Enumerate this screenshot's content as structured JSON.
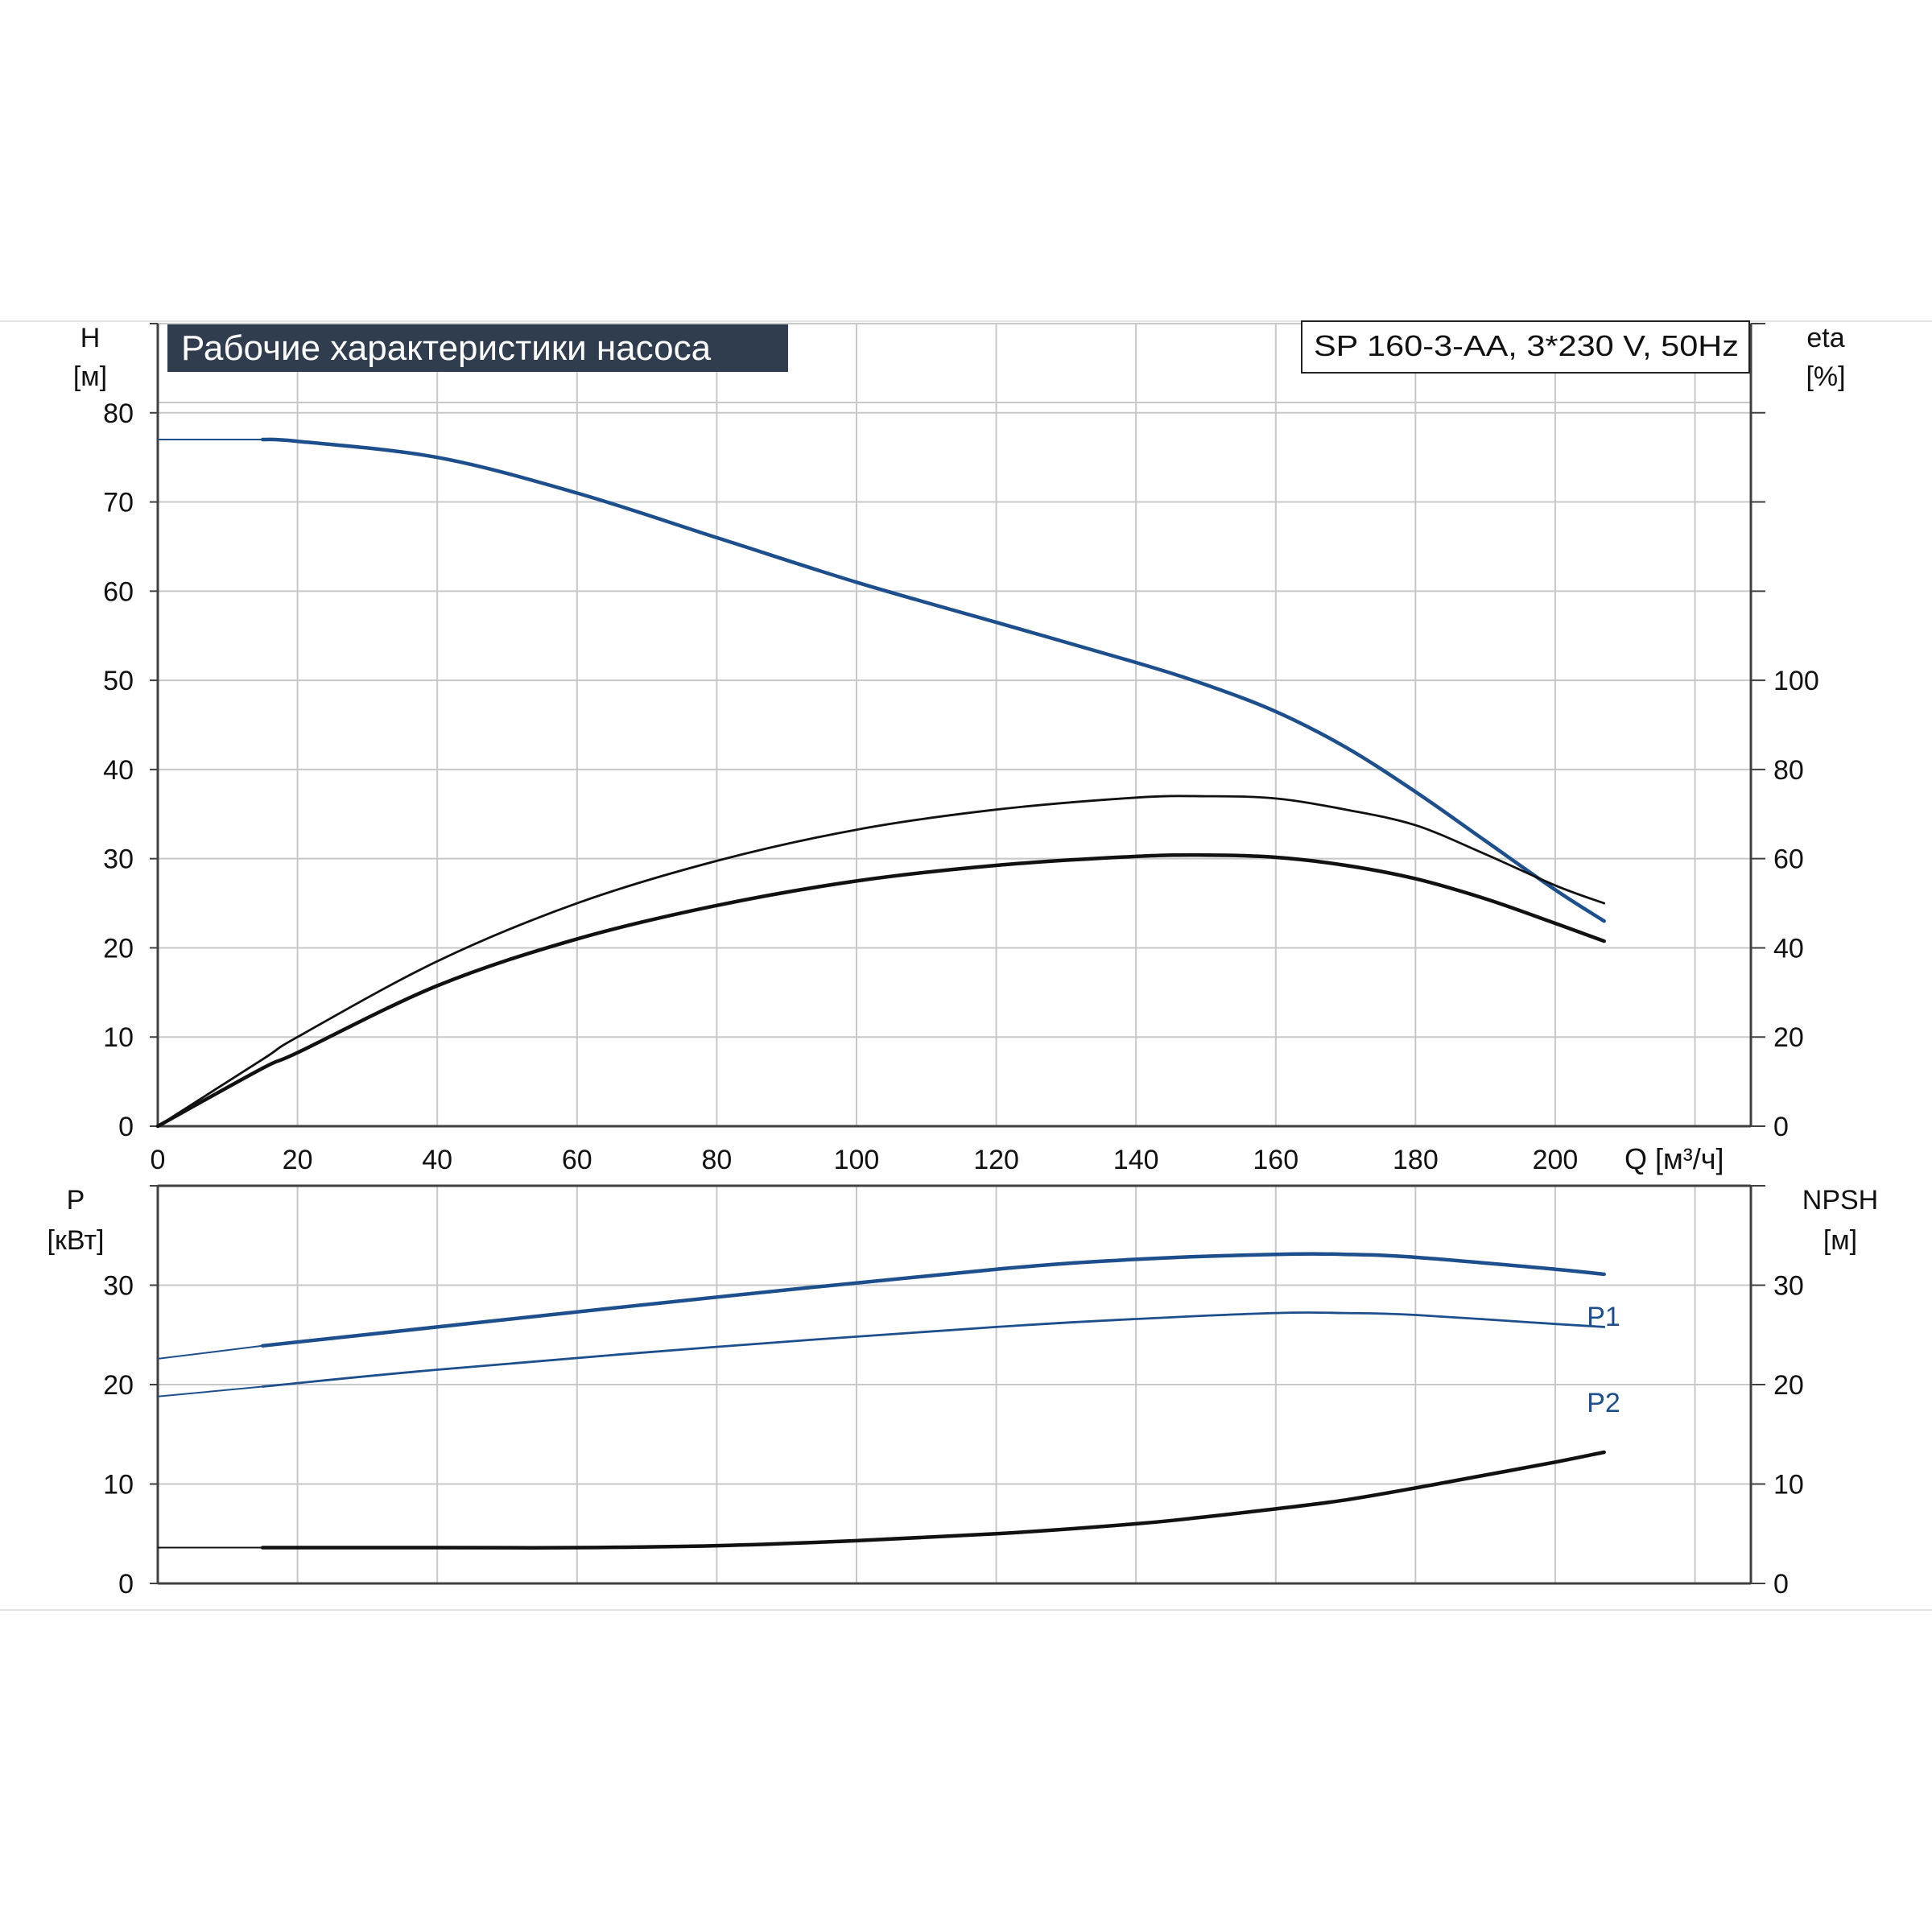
{
  "colors": {
    "blue": "#1d4f8c",
    "black": "#111111",
    "grid": "#c8c8c8",
    "axis": "#404040",
    "title_bg": "#2f3d4e",
    "title_fg": "#ffffff"
  },
  "chart_data": [
    {
      "id": "performance",
      "type": "line",
      "title": "Рабочие характеристики насоса",
      "model_label": "SP 160-3-AA, 3*230 V, 50Hz",
      "xlabel": "Q [м³/ч]",
      "ylabel_left": [
        "H",
        "[м]"
      ],
      "ylabel_right": [
        "eta",
        "[%]"
      ],
      "xlim": [
        0,
        228
      ],
      "ylim_left": [
        0,
        90
      ],
      "ylim_right": [
        0,
        180
      ],
      "x_ticks": [
        0,
        20,
        40,
        60,
        80,
        100,
        120,
        140,
        160,
        180,
        200
      ],
      "y_ticks_left": [
        0,
        10,
        20,
        30,
        40,
        50,
        60,
        70,
        80
      ],
      "y_ticks_right": [
        0,
        20,
        40,
        60,
        80,
        100
      ],
      "grid": true,
      "series": [
        {
          "key": "H",
          "axis": "left",
          "color": "blue",
          "x": [
            0,
            15,
            20,
            40,
            60,
            80,
            100,
            120,
            140,
            150,
            160,
            170,
            180,
            190,
            200,
            207
          ],
          "y": [
            77,
            77,
            76.8,
            75,
            71,
            66,
            61,
            56.5,
            52,
            49.5,
            46.5,
            42.5,
            37.5,
            32,
            26.5,
            23
          ],
          "faint_x_max": 15
        },
        {
          "key": "eta_pump",
          "axis": "right",
          "color": "black",
          "thin": true,
          "x": [
            0,
            15,
            20,
            40,
            60,
            80,
            100,
            120,
            140,
            150,
            160,
            170,
            180,
            190,
            200,
            207
          ],
          "y": [
            0,
            15,
            20,
            37,
            50,
            59.5,
            66.5,
            71,
            73.7,
            74,
            73.5,
            71,
            67.5,
            61,
            54,
            50
          ],
          "faint_x_max": 0
        },
        {
          "key": "eta_total",
          "axis": "right",
          "color": "black",
          "x": [
            0,
            15,
            20,
            40,
            60,
            80,
            100,
            120,
            140,
            150,
            160,
            170,
            180,
            190,
            200,
            207
          ],
          "y": [
            0,
            13,
            16.5,
            31.5,
            42,
            49.5,
            55,
            58.5,
            60.5,
            60.8,
            60.3,
            58.5,
            55.5,
            51,
            45.5,
            41.5
          ],
          "faint_x_max": 0
        }
      ]
    },
    {
      "id": "power",
      "type": "line",
      "xlabel": "",
      "ylabel_left": [
        "P",
        "[кВт]"
      ],
      "ylabel_right": [
        "NPSH",
        "[м]"
      ],
      "xlim": [
        0,
        228
      ],
      "ylim_left": [
        0,
        40
      ],
      "ylim_right": [
        0,
        40
      ],
      "x_ticks": [],
      "y_ticks_left": [
        0,
        10,
        20,
        30
      ],
      "y_ticks_right": [
        0,
        10,
        20,
        30
      ],
      "grid": true,
      "series": [
        {
          "name": "P1",
          "key": "P1",
          "axis": "left",
          "color": "blue",
          "x": [
            0,
            15,
            40,
            80,
            120,
            140,
            160,
            170,
            180,
            200,
            207
          ],
          "y": [
            22.6,
            23.9,
            25.8,
            28.8,
            31.6,
            32.6,
            33.1,
            33.1,
            32.8,
            31.6,
            31.1
          ],
          "faint_x_max": 15
        },
        {
          "name": "P2",
          "key": "P2",
          "axis": "left",
          "color": "blue",
          "thin": true,
          "x": [
            0,
            15,
            40,
            80,
            120,
            140,
            160,
            170,
            180,
            200,
            207
          ],
          "y": [
            18.8,
            19.8,
            21.5,
            23.8,
            25.8,
            26.6,
            27.2,
            27.2,
            27,
            26.1,
            25.8
          ],
          "faint_x_max": 15
        },
        {
          "key": "NPSH",
          "axis": "right",
          "color": "black",
          "x": [
            0,
            15,
            40,
            60,
            80,
            100,
            120,
            140,
            150,
            160,
            170,
            180,
            190,
            200,
            207
          ],
          "y": [
            3.6,
            3.6,
            3.6,
            3.6,
            3.8,
            4.3,
            5,
            6,
            6.7,
            7.5,
            8.4,
            9.6,
            10.9,
            12.2,
            13.2
          ],
          "faint_x_max": 15
        }
      ]
    }
  ]
}
